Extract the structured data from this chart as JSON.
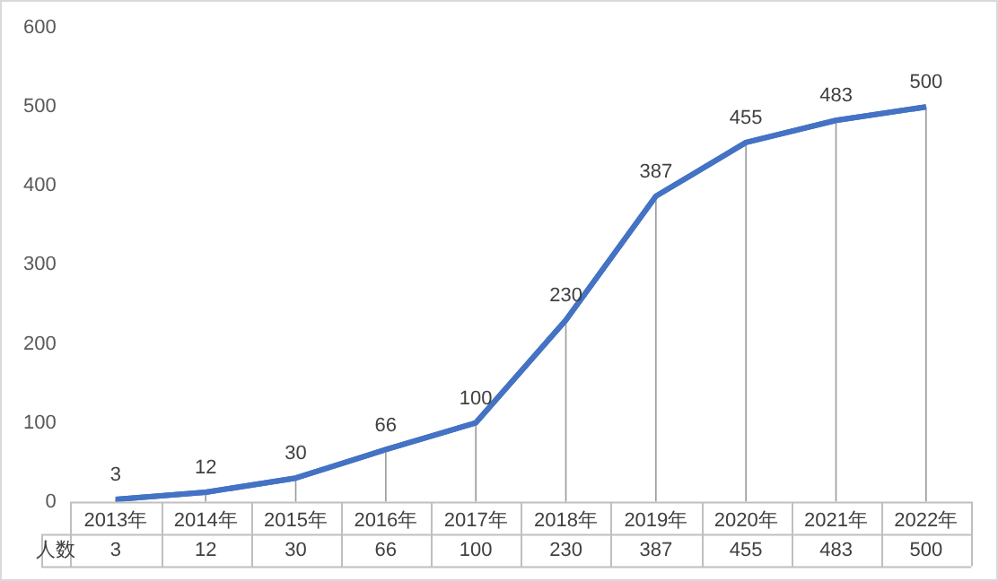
{
  "chart_data": {
    "type": "line",
    "categories": [
      "2013年",
      "2014年",
      "2015年",
      "2016年",
      "2017年",
      "2018年",
      "2019年",
      "2020年",
      "2021年",
      "2022年"
    ],
    "series": [
      {
        "name": "人数",
        "color": "#4472c4",
        "values": [
          3,
          12,
          30,
          66,
          100,
          230,
          387,
          455,
          483,
          500
        ],
        "value_labels": [
          "3",
          "12",
          "30",
          "66",
          "100",
          "230",
          "387",
          "455",
          "483",
          "500"
        ]
      }
    ],
    "ylim": [
      0,
      600
    ],
    "yticks": [
      0,
      100,
      200,
      300,
      400,
      500,
      600
    ],
    "grid": "x",
    "legend": false,
    "marker": "none",
    "line_style": "solid",
    "annotations": [
      "3",
      "12",
      "30",
      "66",
      "100",
      "230",
      "387",
      "455",
      "483",
      "500"
    ]
  }
}
